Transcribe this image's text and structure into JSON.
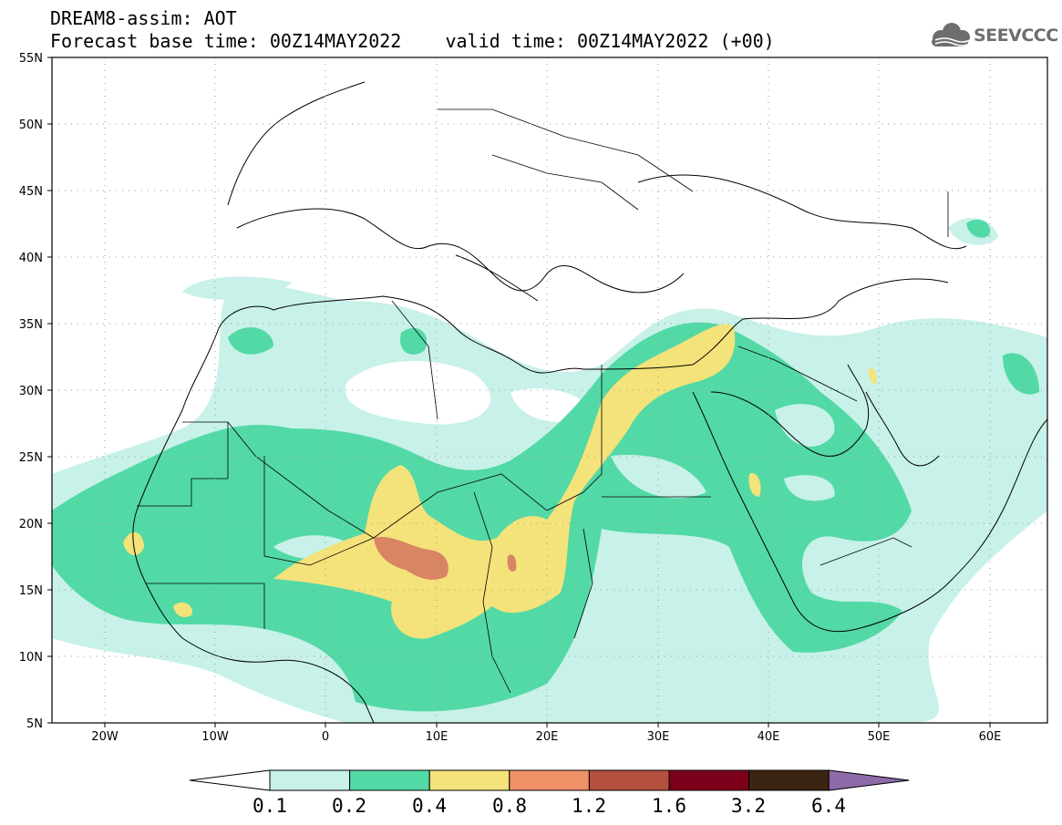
{
  "title": {
    "line1": "DREAM8-assim: AOT",
    "line2": "Forecast base time: 00Z14MAY2022    valid time: 00Z14MAY2022 (+00)"
  },
  "logo": {
    "text": "SEEVCCC",
    "icon": "cloud-logo-icon",
    "color": "#6e6e6e"
  },
  "map": {
    "lon_range": [
      -25,
      65
    ],
    "lat_range": [
      5,
      55
    ],
    "x_ticks": [
      "20W",
      "10W",
      "0",
      "10E",
      "20E",
      "30E",
      "40E",
      "50E",
      "60E"
    ],
    "y_ticks": [
      "55N",
      "50N",
      "45N",
      "40N",
      "35N",
      "30N",
      "25N",
      "20N",
      "15N",
      "10N",
      "5N"
    ],
    "grid": "dotted",
    "projection": "lat-lon"
  },
  "colorbar": {
    "labels": [
      "0.1",
      "0.2",
      "0.4",
      "0.8",
      "1.2",
      "1.6",
      "3.2",
      "6.4"
    ],
    "colors": [
      "#ffffff",
      "#c7f1e9",
      "#52d9a6",
      "#f4e27a",
      "#ee9167",
      "#b4513e",
      "#7c001a",
      "#3c2412",
      "#8e6aa8"
    ]
  }
}
